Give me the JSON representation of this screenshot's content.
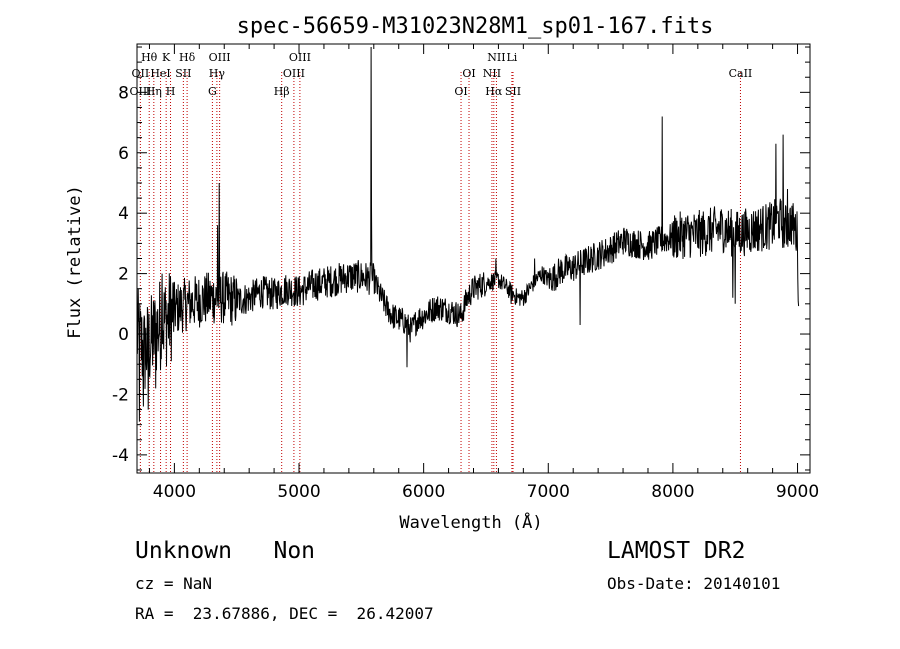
{
  "chart_data": {
    "type": "line",
    "title": "spec-56659-M31023N28M1_sp01-167.fits",
    "xlabel": "Wavelength (Å)",
    "ylabel": "Flux (relative)",
    "xlim": [
      3700,
      9100
    ],
    "ylim": [
      -4.6,
      9.6
    ],
    "xticks": [
      4000,
      5000,
      6000,
      7000,
      8000,
      9000
    ],
    "yticks": [
      -4,
      -2,
      0,
      2,
      4,
      6,
      8
    ],
    "series": [
      {
        "anchors": [
          [
            3700,
            0.0
          ],
          [
            3760,
            -0.6
          ],
          [
            3820,
            -0.2
          ],
          [
            3880,
            0.3
          ],
          [
            3950,
            0.5
          ],
          [
            4000,
            0.8
          ],
          [
            4100,
            1.0
          ],
          [
            4200,
            1.1
          ],
          [
            4300,
            1.2
          ],
          [
            4400,
            1.2
          ],
          [
            4500,
            1.1
          ],
          [
            4600,
            1.2
          ],
          [
            4700,
            1.4
          ],
          [
            4800,
            1.3
          ],
          [
            4900,
            1.5
          ],
          [
            5000,
            1.4
          ],
          [
            5100,
            1.6
          ],
          [
            5200,
            1.7
          ],
          [
            5300,
            1.8
          ],
          [
            5400,
            1.9
          ],
          [
            5500,
            1.9
          ],
          [
            5600,
            1.8
          ],
          [
            5650,
            1.3
          ],
          [
            5700,
            0.9
          ],
          [
            5750,
            0.6
          ],
          [
            5800,
            0.5
          ],
          [
            5850,
            0.4
          ],
          [
            5900,
            0.1
          ],
          [
            5950,
            0.5
          ],
          [
            6000,
            0.6
          ],
          [
            6100,
            0.9
          ],
          [
            6200,
            0.8
          ],
          [
            6300,
            0.6
          ],
          [
            6350,
            1.2
          ],
          [
            6400,
            1.5
          ],
          [
            6500,
            1.7
          ],
          [
            6600,
            1.8
          ],
          [
            6650,
            1.6
          ],
          [
            6700,
            1.4
          ],
          [
            6750,
            1.2
          ],
          [
            6800,
            1.2
          ],
          [
            6850,
            1.5
          ],
          [
            6900,
            1.8
          ],
          [
            6950,
            2.0
          ],
          [
            7000,
            1.8
          ],
          [
            7050,
            1.9
          ],
          [
            7100,
            2.1
          ],
          [
            7200,
            2.2
          ],
          [
            7300,
            2.4
          ],
          [
            7400,
            2.6
          ],
          [
            7500,
            2.8
          ],
          [
            7600,
            3.1
          ],
          [
            7700,
            3.0
          ],
          [
            7800,
            2.9
          ],
          [
            7900,
            3.1
          ],
          [
            8000,
            3.2
          ],
          [
            8100,
            3.3
          ],
          [
            8200,
            3.3
          ],
          [
            8300,
            3.4
          ],
          [
            8400,
            3.5
          ],
          [
            8500,
            3.3
          ],
          [
            8600,
            3.4
          ],
          [
            8700,
            3.5
          ],
          [
            8800,
            3.6
          ],
          [
            8850,
            3.8
          ],
          [
            8900,
            3.5
          ],
          [
            8950,
            3.7
          ],
          [
            9000,
            3.3
          ],
          [
            9010,
            0.4
          ]
        ],
        "spikes": [
          [
            5577,
            9.5
          ],
          [
            5583,
            4.2
          ],
          [
            4359,
            5.0
          ],
          [
            4345,
            3.6
          ],
          [
            7913,
            7.2
          ],
          [
            8825,
            6.3
          ],
          [
            8885,
            6.6
          ],
          [
            8920,
            4.8
          ],
          [
            6580,
            2.5
          ],
          [
            3720,
            -2.9
          ],
          [
            3750,
            -2.4
          ],
          [
            3790,
            -2.5
          ],
          [
            3850,
            -1.8
          ],
          [
            3900,
            2.0
          ],
          [
            5867,
            -1.1
          ],
          [
            8480,
            1.2
          ],
          [
            8500,
            1.0
          ],
          [
            7255,
            0.3
          ],
          [
            6890,
            2.5
          ],
          [
            6700,
            1.0
          ]
        ]
      }
    ],
    "line_labels": [
      {
        "label": "Hθ",
        "x": 3798,
        "row": 0
      },
      {
        "label": "OII",
        "x": 3727,
        "row": 1
      },
      {
        "label": "OIII",
        "x": 3728,
        "row": 2
      },
      {
        "label": "K",
        "x": 3934,
        "row": 0
      },
      {
        "label": "HeI",
        "x": 3889,
        "row": 1
      },
      {
        "label": "Hη",
        "x": 3835,
        "row": 2
      },
      {
        "label": "Hδ",
        "x": 4102,
        "row": 0
      },
      {
        "label": "SII",
        "x": 4072,
        "row": 1
      },
      {
        "label": "H",
        "x": 3969,
        "row": 2
      },
      {
        "label": "OIII",
        "x": 4363,
        "row": 0
      },
      {
        "label": "Hγ",
        "x": 4341,
        "row": 1
      },
      {
        "label": "G",
        "x": 4305,
        "row": 2
      },
      {
        "label": "OIII",
        "x": 5007,
        "row": 0
      },
      {
        "label": "OIII",
        "x": 4959,
        "row": 1
      },
      {
        "label": "Hβ",
        "x": 4861,
        "row": 2
      },
      {
        "label": "OI",
        "x": 6364,
        "row": 1
      },
      {
        "label": "OI",
        "x": 6300,
        "row": 2
      },
      {
        "label": "NII",
        "x": 6584,
        "row": 0
      },
      {
        "label": "Li",
        "x": 6708,
        "row": 0
      },
      {
        "label": "NII",
        "x": 6548,
        "row": 1
      },
      {
        "label": "Hα",
        "x": 6563,
        "row": 2
      },
      {
        "label": "SII",
        "x": 6717,
        "row": 2
      },
      {
        "label": "CaII",
        "x": 8542,
        "row": 1
      }
    ],
    "marker_lines": [
      3727,
      3798,
      3835,
      3889,
      3934,
      3969,
      4072,
      4102,
      4305,
      4341,
      4363,
      4861,
      4959,
      5007,
      6300,
      6364,
      6548,
      6563,
      6584,
      6708,
      6717,
      8542
    ],
    "marker_color": "#c00000",
    "line_color": "#000000"
  },
  "info": {
    "class_text": "Unknown   Non",
    "survey": "LAMOST DR2",
    "cz": "cz = NaN",
    "obs_date": "Obs-Date: 20140101",
    "coords": "RA =  23.67886, DEC =  26.42007"
  }
}
